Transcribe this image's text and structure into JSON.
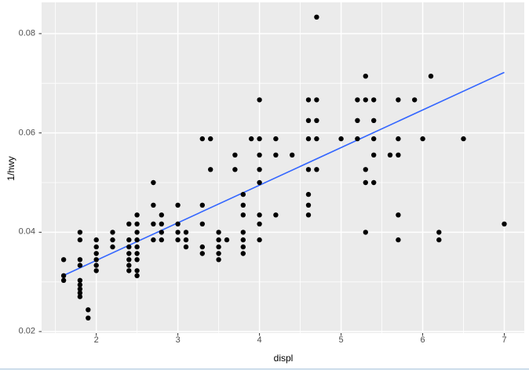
{
  "chart_data": {
    "type": "scatter",
    "title": "",
    "xlabel": "displ",
    "ylabel": "1/hwy",
    "legend": "none",
    "grid": "white major and minor gridlines on gray panel",
    "xlim": [
      1.33,
      7.245
    ],
    "ylim": [
      0.0197,
      0.0863
    ],
    "x_tick_values": [
      2,
      3,
      4,
      5,
      6,
      7
    ],
    "x_tick_labels": [
      "2",
      "3",
      "4",
      "5",
      "6",
      "7"
    ],
    "y_tick_values": [
      0.02,
      0.04,
      0.06,
      0.08
    ],
    "y_tick_labels": [
      "0.02",
      "0.04",
      "0.06",
      "0.08"
    ],
    "x_minor_ticks": [
      1.5,
      2.5,
      3.5,
      4.5,
      5.5,
      6.5
    ],
    "y_minor_ticks": [
      0.03,
      0.05,
      0.07
    ],
    "y_transform": "y value plotted is 1/hwy",
    "points_displ_hwy": [
      [
        1.6,
        29
      ],
      [
        1.6,
        32
      ],
      [
        1.6,
        33
      ],
      [
        1.8,
        25
      ],
      [
        1.8,
        26
      ],
      [
        1.8,
        29
      ],
      [
        1.8,
        30
      ],
      [
        1.8,
        33
      ],
      [
        1.8,
        34
      ],
      [
        1.8,
        35
      ],
      [
        1.8,
        36
      ],
      [
        1.8,
        37
      ],
      [
        1.9,
        41
      ],
      [
        1.9,
        44
      ],
      [
        2.0,
        26
      ],
      [
        2.0,
        27
      ],
      [
        2.0,
        28
      ],
      [
        2.0,
        29
      ],
      [
        2.0,
        30
      ],
      [
        2.0,
        31
      ],
      [
        2.2,
        25
      ],
      [
        2.2,
        26
      ],
      [
        2.2,
        27
      ],
      [
        2.4,
        24
      ],
      [
        2.4,
        26
      ],
      [
        2.4,
        27
      ],
      [
        2.4,
        28
      ],
      [
        2.4,
        29
      ],
      [
        2.4,
        30
      ],
      [
        2.4,
        31
      ],
      [
        2.5,
        23
      ],
      [
        2.5,
        24
      ],
      [
        2.5,
        25
      ],
      [
        2.5,
        26
      ],
      [
        2.5,
        27
      ],
      [
        2.5,
        28
      ],
      [
        2.5,
        29
      ],
      [
        2.5,
        31
      ],
      [
        2.5,
        32
      ],
      [
        2.7,
        20
      ],
      [
        2.7,
        22
      ],
      [
        2.7,
        24
      ],
      [
        2.7,
        26
      ],
      [
        2.8,
        23
      ],
      [
        2.8,
        24
      ],
      [
        2.8,
        25
      ],
      [
        2.8,
        26
      ],
      [
        3.0,
        22
      ],
      [
        3.0,
        24
      ],
      [
        3.0,
        25
      ],
      [
        3.0,
        26
      ],
      [
        3.1,
        25
      ],
      [
        3.1,
        26
      ],
      [
        3.1,
        27
      ],
      [
        3.3,
        17
      ],
      [
        3.3,
        22
      ],
      [
        3.3,
        24
      ],
      [
        3.3,
        27
      ],
      [
        3.3,
        28
      ],
      [
        3.4,
        17
      ],
      [
        3.4,
        19
      ],
      [
        3.5,
        25
      ],
      [
        3.5,
        26
      ],
      [
        3.5,
        27
      ],
      [
        3.5,
        28
      ],
      [
        3.5,
        29
      ],
      [
        3.6,
        26
      ],
      [
        3.7,
        18
      ],
      [
        3.7,
        19
      ],
      [
        3.8,
        21
      ],
      [
        3.8,
        22
      ],
      [
        3.8,
        23
      ],
      [
        3.8,
        25
      ],
      [
        3.8,
        26
      ],
      [
        3.8,
        27
      ],
      [
        3.8,
        28
      ],
      [
        3.9,
        17
      ],
      [
        4.0,
        15
      ],
      [
        4.0,
        17
      ],
      [
        4.0,
        18
      ],
      [
        4.0,
        19
      ],
      [
        4.0,
        20
      ],
      [
        4.0,
        23
      ],
      [
        4.0,
        24
      ],
      [
        4.0,
        26
      ],
      [
        4.2,
        17
      ],
      [
        4.2,
        18
      ],
      [
        4.2,
        23
      ],
      [
        4.4,
        18
      ],
      [
        4.6,
        15
      ],
      [
        4.6,
        16
      ],
      [
        4.6,
        17
      ],
      [
        4.6,
        19
      ],
      [
        4.6,
        21
      ],
      [
        4.6,
        22
      ],
      [
        4.6,
        23
      ],
      [
        4.7,
        12
      ],
      [
        4.7,
        15
      ],
      [
        4.7,
        16
      ],
      [
        4.7,
        17
      ],
      [
        4.7,
        19
      ],
      [
        5.0,
        17
      ],
      [
        5.2,
        15
      ],
      [
        5.2,
        16
      ],
      [
        5.2,
        17
      ],
      [
        5.3,
        14
      ],
      [
        5.3,
        15
      ],
      [
        5.3,
        19
      ],
      [
        5.3,
        20
      ],
      [
        5.3,
        25
      ],
      [
        5.4,
        15
      ],
      [
        5.4,
        16
      ],
      [
        5.4,
        17
      ],
      [
        5.4,
        18
      ],
      [
        5.4,
        20
      ],
      [
        5.6,
        18
      ],
      [
        5.7,
        15
      ],
      [
        5.7,
        17
      ],
      [
        5.7,
        18
      ],
      [
        5.7,
        23
      ],
      [
        5.7,
        26
      ],
      [
        5.9,
        15
      ],
      [
        6.0,
        17
      ],
      [
        6.1,
        14
      ],
      [
        6.2,
        25
      ],
      [
        6.2,
        26
      ],
      [
        6.5,
        17
      ],
      [
        7.0,
        24
      ]
    ],
    "regression_line": {
      "x1": 1.6,
      "y1": 0.0313,
      "x2": 7.0,
      "y2": 0.0722
    }
  },
  "style": {
    "page_bg": "#FFFFFF",
    "panel_bg": "#EBEBEB",
    "grid_color": "#FFFFFF",
    "point_color": "#000000",
    "line_color": "#3366FF",
    "axis_text_color": "#4D4D4D",
    "axis_title_color": "#000000",
    "tick_color": "#333333",
    "footer_divider_color": "#CCDDEB"
  }
}
